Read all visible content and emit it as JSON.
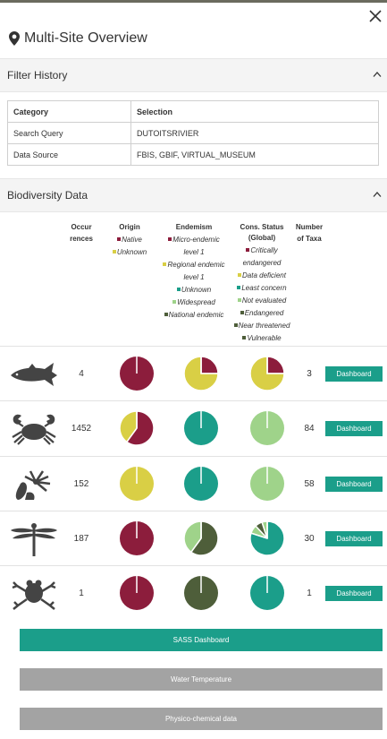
{
  "header": {
    "title": "Multi-Site Overview",
    "close_icon": "close-icon",
    "pin_icon": "map-marker-icon"
  },
  "filter_history": {
    "title": "Filter History",
    "columns": [
      "Category",
      "Selection"
    ],
    "rows": [
      {
        "category": "Search Query",
        "selection": "DUTOITSRIVIER"
      },
      {
        "category": "Data Source",
        "selection": "FBIS, GBIF, VIRTUAL_MUSEUM"
      }
    ]
  },
  "biodiversity": {
    "title": "Biodiversity Data",
    "headers": {
      "occurrences": [
        "Occur",
        "rences"
      ],
      "origin": "Origin",
      "endemism": "Endemism",
      "cons_status": [
        "Cons. Status",
        "(Global)"
      ],
      "taxa": [
        "Number",
        "of Taxa"
      ]
    },
    "legends": {
      "origin": [
        {
          "label": "Native",
          "color": "#8c1d3c"
        },
        {
          "label": "Unknown",
          "color": "#d9cf45"
        }
      ],
      "endemism": [
        {
          "label": "Micro-endemic",
          "color": "#8c1d3c"
        },
        {
          "label": "level 1",
          "color": ""
        },
        {
          "label": "Regional endemic",
          "color": "#d9cf45"
        },
        {
          "label": "level 1",
          "color": ""
        },
        {
          "label": "Unknown",
          "color": "#1b9e8a"
        },
        {
          "label": "Widespread",
          "color": "#9fd38a"
        },
        {
          "label": "National endemic",
          "color": "#4e5e3a"
        }
      ],
      "cons": [
        {
          "label": "Critically",
          "color": "#8c1d3c"
        },
        {
          "label": "endangered",
          "color": ""
        },
        {
          "label": "Data deficient",
          "color": "#d9cf45"
        },
        {
          "label": "Least concern",
          "color": "#1b9e8a"
        },
        {
          "label": "Not evaluated",
          "color": "#9fd38a"
        },
        {
          "label": "Endangered",
          "color": "#4e5e3a"
        },
        {
          "label": "Near threatened",
          "color": "#4e5e3a"
        },
        {
          "label": "Vulnerable",
          "color": "#4e5e3a"
        }
      ]
    },
    "dashboard_label": "Dashboard",
    "rows": [
      {
        "taxon_icon": "fish-icon",
        "occurrences": "4",
        "taxa": "3",
        "origin": [
          {
            "v": 1,
            "c": "#8c1d3c"
          }
        ],
        "endemism": [
          {
            "v": 0.25,
            "c": "#8c1d3c"
          },
          {
            "v": 0.75,
            "c": "#d9cf45"
          }
        ],
        "cons": [
          {
            "v": 0.25,
            "c": "#8c1d3c"
          },
          {
            "v": 0.75,
            "c": "#d9cf45"
          }
        ]
      },
      {
        "taxon_icon": "crab-icon",
        "occurrences": "1452",
        "taxa": "84",
        "origin": [
          {
            "v": 0.6,
            "c": "#8c1d3c"
          },
          {
            "v": 0.4,
            "c": "#d9cf45"
          }
        ],
        "endemism": [
          {
            "v": 1,
            "c": "#1b9e8a"
          }
        ],
        "cons": [
          {
            "v": 1,
            "c": "#9fd38a"
          }
        ]
      },
      {
        "taxon_icon": "plant-icon",
        "occurrences": "152",
        "taxa": "58",
        "origin": [
          {
            "v": 1,
            "c": "#d9cf45"
          }
        ],
        "endemism": [
          {
            "v": 1,
            "c": "#1b9e8a"
          }
        ],
        "cons": [
          {
            "v": 1,
            "c": "#9fd38a"
          }
        ]
      },
      {
        "taxon_icon": "dragonfly-icon",
        "occurrences": "187",
        "taxa": "30",
        "origin": [
          {
            "v": 1,
            "c": "#8c1d3c"
          }
        ],
        "endemism": [
          {
            "v": 0.6,
            "c": "#4e5e3a"
          },
          {
            "v": 0.4,
            "c": "#9fd38a"
          }
        ],
        "cons": [
          {
            "v": 0.8,
            "c": "#1b9e8a"
          },
          {
            "v": 0.08,
            "c": "#9fd38a"
          },
          {
            "v": 0.07,
            "c": "#4e5e3a"
          },
          {
            "v": 0.05,
            "c": "#9fd38a"
          }
        ]
      },
      {
        "taxon_icon": "frog-icon",
        "occurrences": "1",
        "taxa": "1",
        "origin": [
          {
            "v": 1,
            "c": "#8c1d3c"
          }
        ],
        "endemism": [
          {
            "v": 1,
            "c": "#4e5e3a"
          }
        ],
        "cons": [
          {
            "v": 1,
            "c": "#1b9e8a"
          }
        ]
      }
    ]
  },
  "buttons": {
    "sass": {
      "label": "SASS Dashboard",
      "color": "#1b9e8a"
    },
    "water": {
      "label": "Water Temperature",
      "color": "#a3a3a3"
    },
    "physico": {
      "label": "Physico-chemical data",
      "color": "#a3a3a3"
    }
  }
}
